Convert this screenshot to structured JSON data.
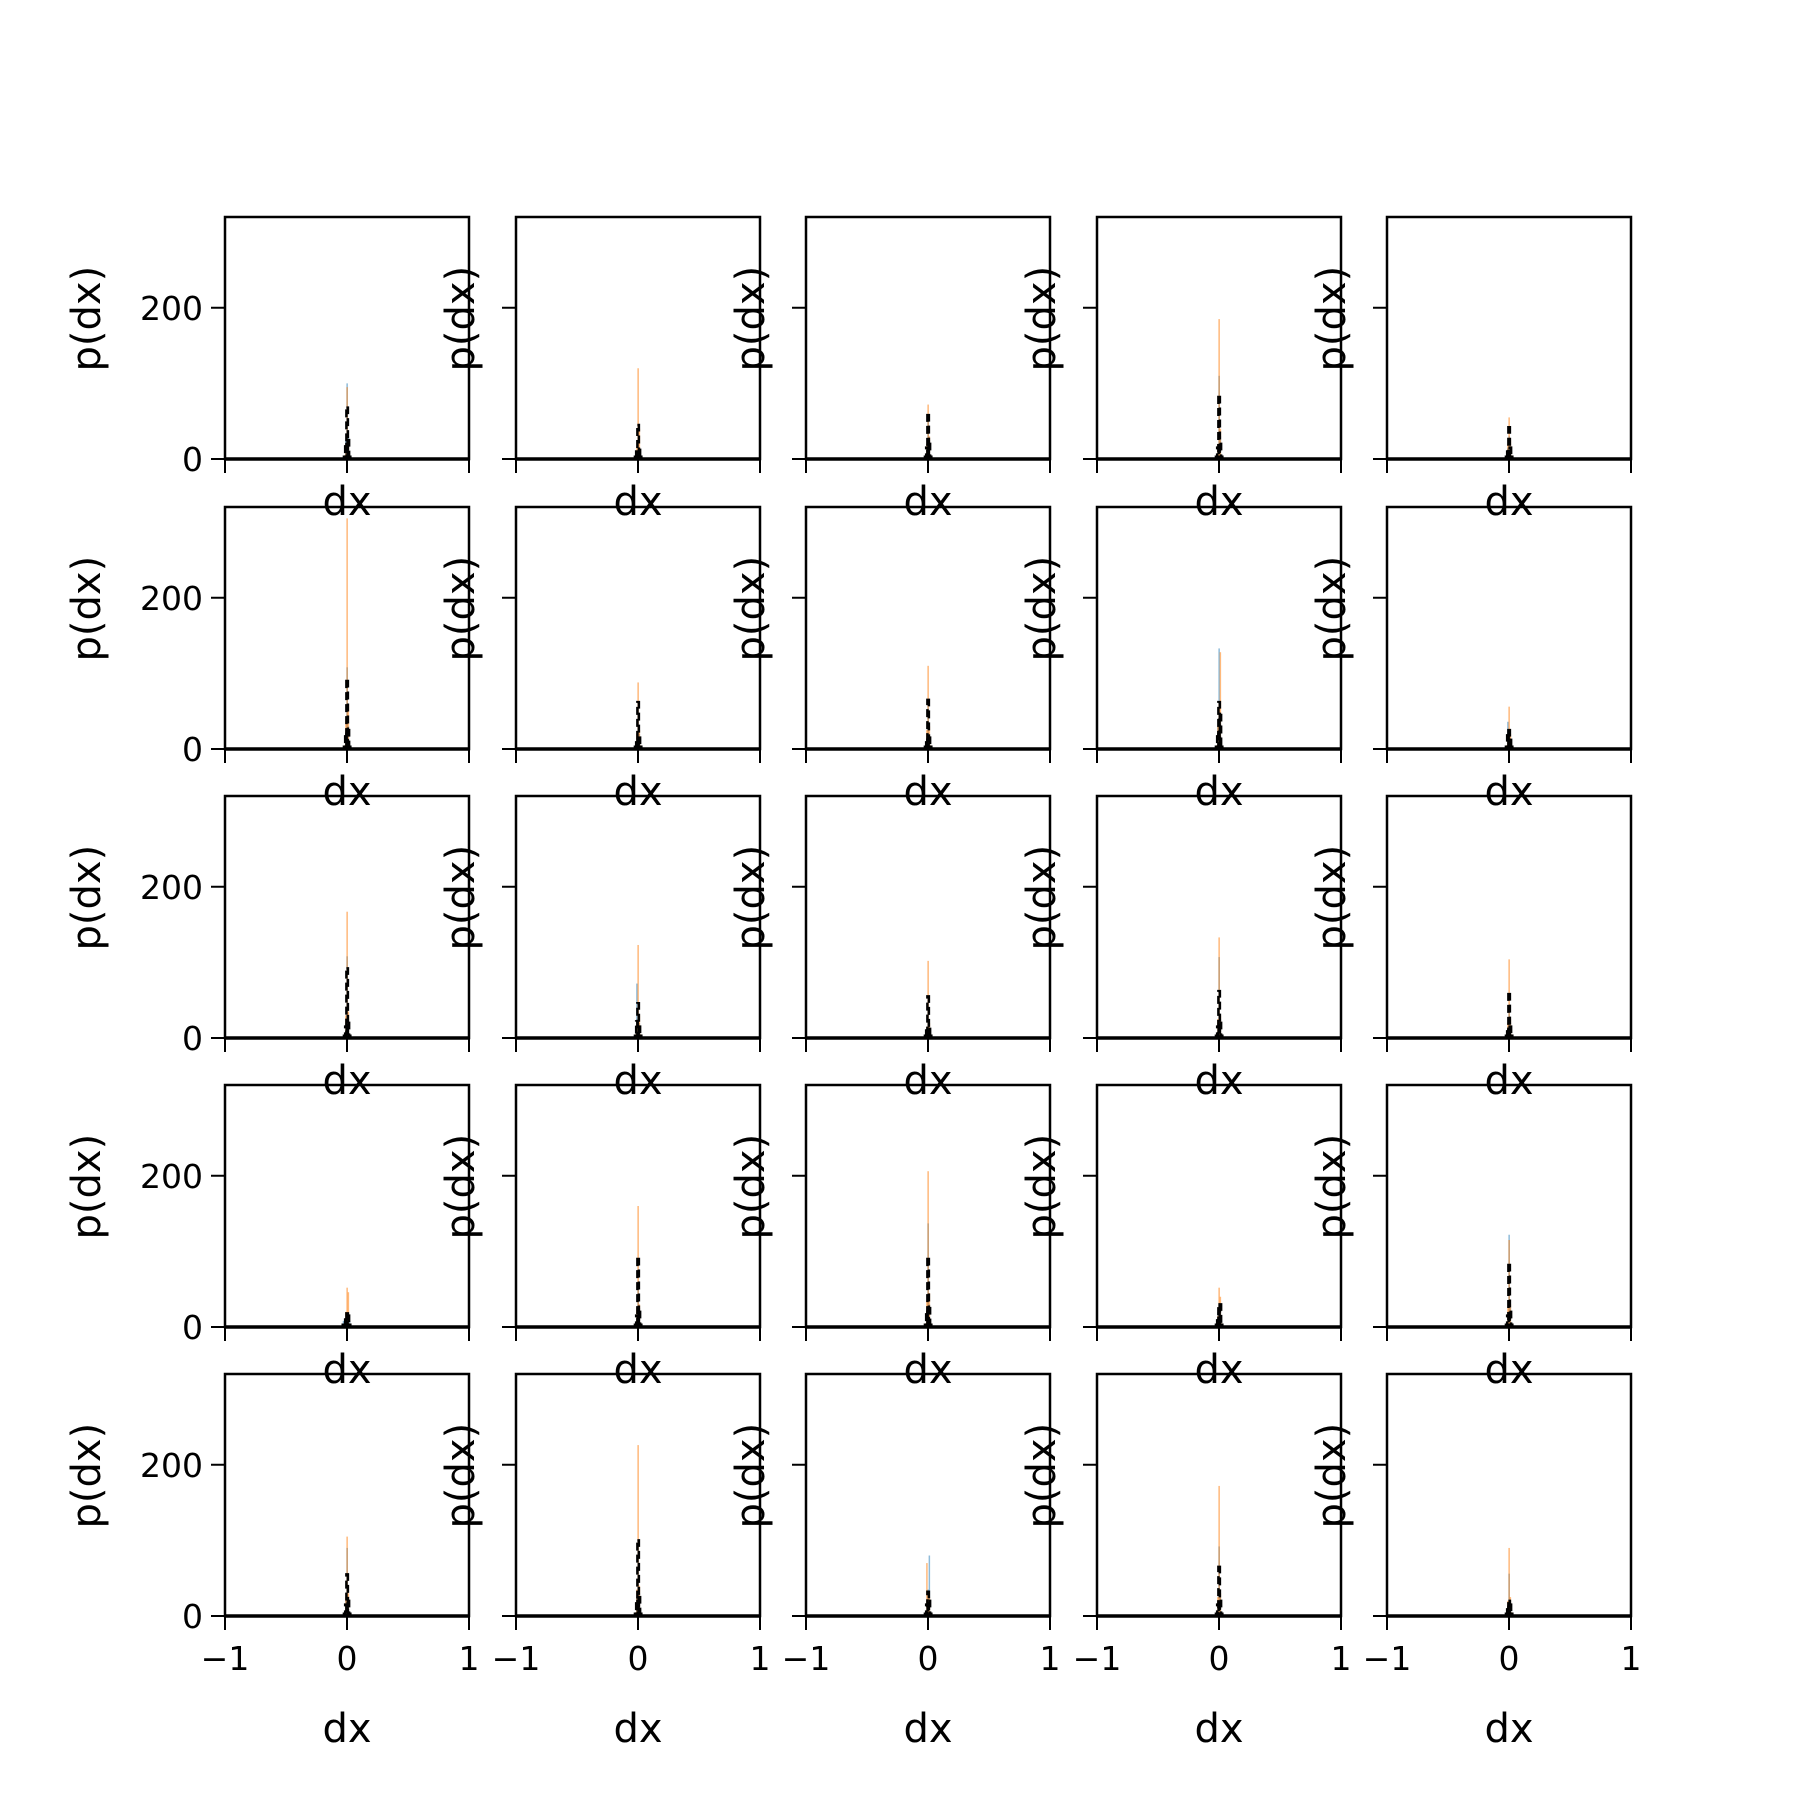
{
  "chart_data": {
    "type": "bar",
    "layout": {
      "rows": 5,
      "cols": 5
    },
    "xlabel": "dx",
    "ylabel": "p(dx)",
    "xlim": [
      -1,
      1
    ],
    "ylim": [
      0,
      320
    ],
    "xticks": [
      -1,
      0,
      1
    ],
    "xtick_labels": [
      "−1",
      "0",
      "1"
    ],
    "yticks": [
      0,
      200
    ],
    "ytick_labels": [
      "0",
      "200"
    ],
    "colors": {
      "blue": "#1f77b4",
      "orange": "#ff7f0e",
      "black": "#000000"
    },
    "bin_offsets": [
      -0.04,
      -0.03,
      -0.02,
      -0.01,
      0.0,
      0.01,
      0.02,
      0.03,
      0.04
    ],
    "panels": [
      {
        "blue": [
          0,
          0,
          5,
          25,
          100,
          30,
          5,
          0,
          0
        ],
        "orange": [
          0,
          0,
          5,
          20,
          95,
          20,
          5,
          0,
          0
        ],
        "black": [
          0,
          0,
          3,
          20,
          68,
          25,
          3,
          0,
          0
        ]
      },
      {
        "blue": [
          0,
          0,
          5,
          10,
          20,
          15,
          5,
          0,
          0
        ],
        "orange": [
          0,
          0,
          5,
          15,
          120,
          40,
          5,
          0,
          0
        ],
        "black": [
          0,
          0,
          3,
          10,
          45,
          12,
          3,
          0,
          0
        ]
      },
      {
        "blue": [
          0,
          0,
          5,
          20,
          55,
          25,
          5,
          0,
          0
        ],
        "orange": [
          0,
          0,
          5,
          20,
          72,
          30,
          5,
          0,
          0
        ],
        "black": [
          0,
          0,
          3,
          15,
          58,
          20,
          3,
          0,
          0
        ]
      },
      {
        "blue": [
          0,
          0,
          5,
          20,
          110,
          30,
          5,
          0,
          0
        ],
        "orange": [
          0,
          0,
          5,
          20,
          185,
          40,
          5,
          0,
          0
        ],
        "black": [
          0,
          0,
          3,
          15,
          82,
          20,
          3,
          0,
          0
        ]
      },
      {
        "blue": [
          0,
          0,
          5,
          15,
          30,
          20,
          5,
          0,
          0
        ],
        "orange": [
          0,
          0,
          5,
          20,
          55,
          25,
          5,
          0,
          0
        ],
        "black": [
          0,
          0,
          3,
          10,
          42,
          15,
          3,
          0,
          0
        ]
      },
      {
        "blue": [
          0,
          0,
          5,
          25,
          108,
          30,
          5,
          0,
          0
        ],
        "orange": [
          0,
          0,
          5,
          40,
          305,
          60,
          5,
          0,
          0
        ],
        "black": [
          0,
          0,
          3,
          20,
          90,
          25,
          3,
          0,
          0
        ]
      },
      {
        "blue": [
          0,
          0,
          5,
          15,
          55,
          20,
          5,
          0,
          0
        ],
        "orange": [
          0,
          0,
          5,
          20,
          88,
          25,
          5,
          0,
          0
        ],
        "black": [
          0,
          0,
          3,
          12,
          62,
          15,
          3,
          0,
          0
        ]
      },
      {
        "blue": [
          0,
          0,
          5,
          15,
          55,
          20,
          5,
          0,
          0
        ],
        "orange": [
          0,
          0,
          5,
          25,
          110,
          30,
          5,
          0,
          0
        ],
        "black": [
          0,
          0,
          3,
          12,
          65,
          15,
          3,
          0,
          0
        ]
      },
      {
        "blue": [
          0,
          0,
          5,
          30,
          133,
          40,
          5,
          0,
          0
        ],
        "orange": [
          0,
          0,
          5,
          30,
          60,
          128,
          5,
          0,
          0
        ],
        "black": [
          0,
          0,
          3,
          20,
          62,
          45,
          3,
          0,
          0
        ]
      },
      {
        "blue": [
          0,
          0,
          5,
          36,
          20,
          15,
          5,
          0,
          0
        ],
        "orange": [
          0,
          0,
          5,
          10,
          56,
          20,
          5,
          0,
          0
        ],
        "black": [
          0,
          0,
          3,
          18,
          25,
          12,
          3,
          0,
          0
        ]
      },
      {
        "blue": [
          0,
          0,
          5,
          20,
          108,
          25,
          5,
          0,
          0
        ],
        "orange": [
          0,
          0,
          5,
          30,
          167,
          35,
          5,
          0,
          0
        ],
        "black": [
          0,
          0,
          3,
          15,
          92,
          20,
          3,
          0,
          0
        ]
      },
      {
        "blue": [
          0,
          0,
          5,
          72,
          30,
          20,
          5,
          0,
          0
        ],
        "orange": [
          0,
          0,
          5,
          20,
          123,
          30,
          5,
          0,
          0
        ],
        "black": [
          0,
          0,
          3,
          22,
          46,
          15,
          3,
          0,
          0
        ]
      },
      {
        "blue": [
          0,
          0,
          5,
          12,
          40,
          15,
          5,
          0,
          0
        ],
        "orange": [
          0,
          0,
          5,
          15,
          102,
          20,
          5,
          0,
          0
        ],
        "black": [
          0,
          0,
          3,
          10,
          55,
          12,
          3,
          0,
          0
        ]
      },
      {
        "blue": [
          0,
          0,
          5,
          20,
          107,
          25,
          5,
          0,
          0
        ],
        "orange": [
          0,
          0,
          5,
          25,
          133,
          30,
          5,
          0,
          0
        ],
        "black": [
          0,
          0,
          3,
          15,
          62,
          20,
          3,
          0,
          0
        ]
      },
      {
        "blue": [
          0,
          0,
          5,
          15,
          40,
          20,
          5,
          0,
          0
        ],
        "orange": [
          0,
          0,
          5,
          20,
          104,
          25,
          5,
          0,
          0
        ],
        "black": [
          0,
          0,
          3,
          12,
          58,
          15,
          3,
          0,
          0
        ]
      },
      {
        "blue": [
          0,
          8,
          10,
          12,
          15,
          12,
          8,
          0,
          0
        ],
        "orange": [
          0,
          0,
          5,
          20,
          52,
          46,
          5,
          0,
          0
        ],
        "black": [
          0,
          3,
          5,
          10,
          18,
          15,
          3,
          0,
          0
        ]
      },
      {
        "blue": [
          0,
          0,
          5,
          20,
          50,
          25,
          5,
          0,
          0
        ],
        "orange": [
          0,
          0,
          5,
          25,
          160,
          30,
          5,
          0,
          0
        ],
        "black": [
          0,
          0,
          3,
          15,
          90,
          20,
          3,
          0,
          0
        ]
      },
      {
        "blue": [
          0,
          0,
          5,
          25,
          137,
          30,
          5,
          0,
          0
        ],
        "orange": [
          0,
          0,
          5,
          35,
          206,
          45,
          5,
          0,
          0
        ],
        "black": [
          0,
          0,
          3,
          20,
          90,
          25,
          3,
          0,
          0
        ]
      },
      {
        "blue": [
          0,
          0,
          5,
          20,
          30,
          25,
          5,
          0,
          0
        ],
        "orange": [
          0,
          0,
          5,
          15,
          52,
          40,
          5,
          0,
          0
        ],
        "black": [
          0,
          0,
          3,
          12,
          28,
          30,
          3,
          0,
          0
        ]
      },
      {
        "blue": [
          0,
          0,
          5,
          20,
          122,
          25,
          5,
          0,
          0
        ],
        "orange": [
          0,
          0,
          5,
          25,
          115,
          30,
          5,
          0,
          0
        ],
        "black": [
          0,
          0,
          3,
          15,
          82,
          20,
          3,
          0,
          0
        ]
      },
      {
        "blue": [
          0,
          0,
          5,
          20,
          90,
          25,
          5,
          0,
          0
        ],
        "orange": [
          0,
          0,
          5,
          25,
          105,
          30,
          5,
          0,
          0
        ],
        "black": [
          0,
          0,
          3,
          15,
          55,
          20,
          3,
          0,
          0
        ]
      },
      {
        "blue": [
          0,
          0,
          5,
          25,
          100,
          30,
          5,
          0,
          0
        ],
        "orange": [
          0,
          0,
          5,
          35,
          226,
          40,
          5,
          0,
          0
        ],
        "black": [
          0,
          0,
          3,
          20,
          100,
          25,
          3,
          0,
          0
        ]
      },
      {
        "blue": [
          0,
          0,
          5,
          20,
          35,
          80,
          5,
          0,
          0
        ],
        "orange": [
          0,
          0,
          5,
          70,
          30,
          25,
          5,
          0,
          0
        ],
        "black": [
          0,
          0,
          3,
          15,
          32,
          20,
          3,
          0,
          0
        ]
      },
      {
        "blue": [
          0,
          0,
          5,
          20,
          92,
          25,
          5,
          0,
          0
        ],
        "orange": [
          0,
          0,
          5,
          25,
          172,
          30,
          5,
          0,
          0
        ],
        "black": [
          0,
          0,
          3,
          15,
          65,
          20,
          3,
          0,
          0
        ]
      },
      {
        "blue": [
          0,
          0,
          5,
          15,
          56,
          20,
          5,
          0,
          0
        ],
        "orange": [
          0,
          0,
          5,
          20,
          90,
          25,
          5,
          0,
          0
        ],
        "black": [
          0,
          0,
          3,
          12,
          20,
          15,
          3,
          0,
          0
        ]
      }
    ]
  }
}
